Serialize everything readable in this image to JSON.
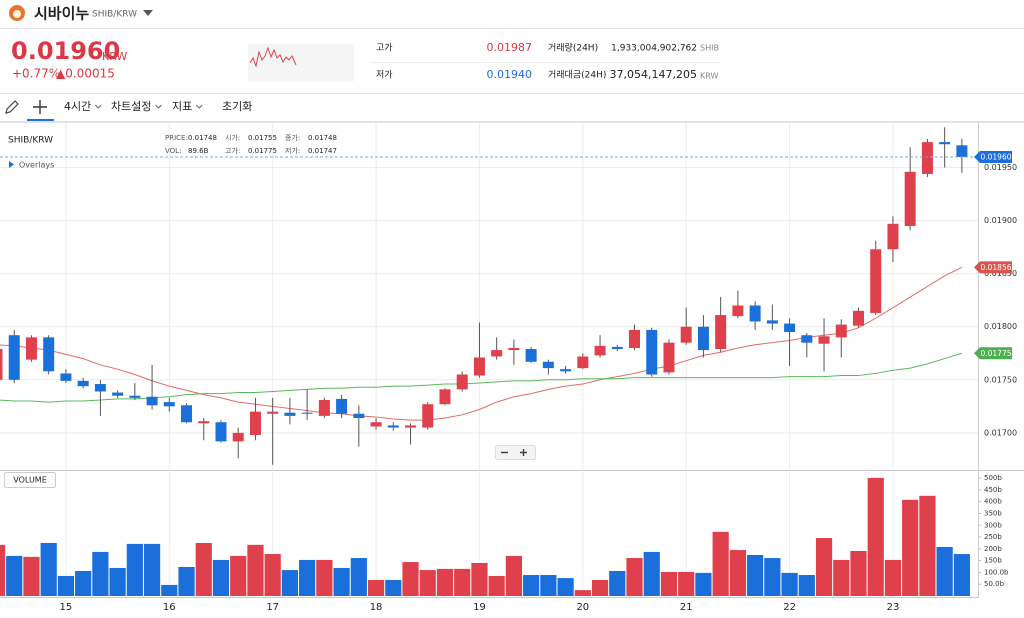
{
  "header": {
    "name": "시바이누",
    "pair": "SHIB/KRW"
  },
  "ticker": {
    "price": "0.01960",
    "unit": "KRW",
    "change_rate": "+0.77%",
    "change": "▲0.00015"
  },
  "stats": {
    "high_label": "고가",
    "high": "0.01987",
    "low_label": "저가",
    "low": "0.01940",
    "volume_label": "거래량(24H)",
    "volume": "1,933,004,902,762",
    "volume_unit": "SHIB",
    "amount_label": "거래대금(24H)",
    "amount": "37,054,147,205",
    "amount_unit": "KRW"
  },
  "toolbar": [
    "4시간",
    "차트설정",
    "지표",
    "초기화"
  ],
  "overlay": "Overlays",
  "legend_info": [
    {
      "label": "PRICE:",
      "value": "0.01748"
    },
    {
      "label": "시가:",
      "value": "0.01755"
    },
    {
      "label": "종가:",
      "value": "0.01748"
    },
    {
      "label": "VOL:",
      "value": "89.6B"
    },
    {
      "label": "고가:",
      "value": "0.01775"
    },
    {
      "label": "저가:",
      "value": "0.01747"
    }
  ],
  "chart_data": [
    {
      "type": "candlestick",
      "title": "SHIB/KRW",
      "categories": [
        null,
        null,
        null,
        null,
        "15",
        null,
        null,
        null,
        null,
        null,
        "16",
        null,
        null,
        null,
        null,
        null,
        "17",
        null,
        null,
        null,
        null,
        null,
        "18",
        null,
        null,
        null,
        null,
        null,
        "19",
        null,
        null,
        null,
        null,
        null,
        "20",
        null,
        null,
        null,
        null,
        null,
        "21",
        null,
        null,
        null,
        null,
        null,
        "22",
        null,
        null,
        null,
        null,
        null,
        "23",
        null,
        null,
        null,
        null
      ],
      "open": [
        0.0175,
        0.01792,
        0.01769,
        0.0179,
        0.01756,
        0.01749,
        0.01746,
        0.01738,
        0.01735,
        0.01734,
        0.01729,
        0.01726,
        0.01709,
        0.0171,
        0.01692,
        0.01698,
        0.01718,
        0.01719,
        0.01719,
        0.01716,
        0.01732,
        0.01718,
        0.01706,
        0.01707,
        0.01705,
        0.01705,
        0.01727,
        0.01741,
        0.01754,
        0.01772,
        0.01778,
        0.01779,
        0.01767,
        0.0176,
        0.01761,
        0.01773,
        0.01781,
        0.0178,
        0.01797,
        0.01757,
        0.01785,
        0.018,
        0.01779,
        0.0181,
        0.0182,
        0.01806,
        0.01803,
        0.01792,
        0.01784,
        0.0179,
        0.01801,
        0.01813,
        0.01873,
        0.01895,
        0.01944,
        0.01974,
        0.01971
      ],
      "high": [
        0.01781,
        0.01797,
        0.01792,
        0.01792,
        0.0176,
        0.01752,
        0.0175,
        0.0174,
        0.01747,
        0.01764,
        0.01733,
        0.01728,
        0.01714,
        0.01712,
        0.01705,
        0.01733,
        0.01733,
        0.01733,
        0.01741,
        0.01733,
        0.01736,
        0.01726,
        0.01714,
        0.0171,
        0.01709,
        0.01729,
        0.01742,
        0.01758,
        0.01804,
        0.0179,
        0.01788,
        0.01781,
        0.01769,
        0.01763,
        0.01775,
        0.01792,
        0.01783,
        0.01802,
        0.01799,
        0.01788,
        0.01818,
        0.01811,
        0.01828,
        0.01834,
        0.01824,
        0.01821,
        0.01808,
        0.01794,
        0.01808,
        0.01807,
        0.01818,
        0.01881,
        0.01904,
        0.01969,
        0.01977,
        0.01988,
        0.01977
      ],
      "low": [
        0.01747,
        0.01747,
        0.01767,
        0.01755,
        0.01747,
        0.01742,
        0.01716,
        0.01733,
        0.01731,
        0.01722,
        0.0172,
        0.01709,
        0.01693,
        0.01691,
        0.01676,
        0.01693,
        0.0167,
        0.01708,
        0.01712,
        0.01714,
        0.01714,
        0.01687,
        0.01703,
        0.01702,
        0.01689,
        0.01703,
        0.01726,
        0.01739,
        0.01752,
        0.01769,
        0.01764,
        0.01766,
        0.01755,
        0.01756,
        0.0176,
        0.01771,
        0.01777,
        0.01778,
        0.01753,
        0.01755,
        0.01783,
        0.01771,
        0.01776,
        0.01808,
        0.01797,
        0.01797,
        0.01763,
        0.01771,
        0.01758,
        0.01771,
        0.01799,
        0.01811,
        0.01861,
        0.01891,
        0.01941,
        0.0195,
        0.01945
      ],
      "close": [
        0.01779,
        0.0175,
        0.0179,
        0.01758,
        0.01749,
        0.01744,
        0.01739,
        0.01735,
        0.01733,
        0.01726,
        0.01725,
        0.0171,
        0.01711,
        0.01692,
        0.017,
        0.0172,
        0.0172,
        0.01716,
        0.01718,
        0.01731,
        0.01718,
        0.01714,
        0.0171,
        0.01705,
        0.01707,
        0.01727,
        0.01741,
        0.01755,
        0.01771,
        0.01778,
        0.0178,
        0.01767,
        0.01761,
        0.01758,
        0.01772,
        0.01782,
        0.01779,
        0.01797,
        0.01755,
        0.01785,
        0.018,
        0.01778,
        0.01811,
        0.0182,
        0.01805,
        0.01803,
        0.01795,
        0.01785,
        0.01791,
        0.01802,
        0.01815,
        0.01873,
        0.01897,
        0.01946,
        0.01974,
        0.01972,
        0.0196
      ],
      "up_color": "#e0404b",
      "down_color": "#1a6fdb",
      "wick_color": "#555555",
      "series": [
        {
          "color": "#e06a6a",
          "values": [
            0.01783,
            0.01782,
            0.0178,
            0.01778,
            0.01774,
            0.0177,
            0.01764,
            0.0176,
            0.01755,
            0.01749,
            0.01744,
            0.0174,
            0.01736,
            0.01733,
            0.01729,
            0.01727,
            0.01725,
            0.01723,
            0.01721,
            0.01719,
            0.01718,
            0.01716,
            0.01715,
            0.01713,
            0.01712,
            0.01712,
            0.01714,
            0.01717,
            0.01722,
            0.01729,
            0.01734,
            0.01737,
            0.01741,
            0.01744,
            0.01746,
            0.0175,
            0.01753,
            0.01756,
            0.0176,
            0.01763,
            0.01768,
            0.01773,
            0.01776,
            0.0178,
            0.01783,
            0.01785,
            0.01787,
            0.0179,
            0.01792,
            0.01794,
            0.01799,
            0.01808,
            0.01818,
            0.01828,
            0.01838,
            0.01848,
            0.01856
          ]
        },
        {
          "color": "#5cb85c",
          "values": [
            0.01731,
            0.0173,
            0.0173,
            0.01729,
            0.0173,
            0.0173,
            0.01731,
            0.01732,
            0.01732,
            0.01733,
            0.01734,
            0.01736,
            0.01737,
            0.01737,
            0.01738,
            0.01738,
            0.01739,
            0.0174,
            0.01741,
            0.01742,
            0.01742,
            0.01743,
            0.01743,
            0.01744,
            0.01744,
            0.01745,
            0.01746,
            0.01746,
            0.01747,
            0.01748,
            0.01749,
            0.01749,
            0.0175,
            0.0175,
            0.01751,
            0.01751,
            0.01751,
            0.01752,
            0.01752,
            0.01752,
            0.01752,
            0.01752,
            0.01752,
            0.01752,
            0.01752,
            0.01752,
            0.01753,
            0.01753,
            0.01753,
            0.01754,
            0.01754,
            0.01756,
            0.01759,
            0.01761,
            0.01765,
            0.0177,
            0.01775
          ]
        }
      ],
      "markers": [
        {
          "value": 0.0196,
          "label": "0.01960",
          "color": "#1a6fdb",
          "line": "dashed"
        },
        {
          "value": 0.01856,
          "label": "0.01856",
          "color": "#d9534f"
        },
        {
          "value": 0.01775,
          "label": "0.01775",
          "color": "#4cae4c"
        }
      ],
      "ylim": [
        0.01665,
        0.01992
      ],
      "yticks": [
        {
          "value": 0.017,
          "label": "0.01700"
        },
        {
          "value": 0.0175,
          "label": "0.01750"
        },
        {
          "value": 0.018,
          "label": "0.01800"
        },
        {
          "value": 0.0185,
          "label": "0.01850"
        },
        {
          "value": 0.019,
          "label": "0.01900"
        },
        {
          "value": 0.0195,
          "label": "0.01950"
        }
      ],
      "grid": true
    },
    {
      "type": "bar",
      "title": "VOLUME",
      "values": [
        217,
        170,
        166,
        225,
        85,
        106,
        187,
        119,
        221,
        221,
        47,
        123,
        225,
        153,
        170,
        217,
        178,
        110,
        153,
        153,
        119,
        161,
        68,
        68,
        144,
        110,
        115,
        115,
        140,
        85,
        170,
        89,
        89,
        76,
        25,
        68,
        106,
        161,
        187,
        102,
        102,
        98,
        272,
        195,
        174,
        161,
        98,
        89,
        246,
        153,
        191,
        501,
        153,
        408,
        425,
        208,
        178
      ],
      "ylim": [
        0,
        526
      ],
      "yticks": [
        {
          "value": 50,
          "label": "50.0b"
        },
        {
          "value": 100,
          "label": "100.0b"
        },
        {
          "value": 150,
          "label": "150b"
        },
        {
          "value": 200,
          "label": "200b"
        },
        {
          "value": 250,
          "label": "250b"
        },
        {
          "value": 300,
          "label": "300b"
        },
        {
          "value": 350,
          "label": "350b"
        },
        {
          "value": 400,
          "label": "400b"
        },
        {
          "value": 450,
          "label": "450b"
        },
        {
          "value": 500,
          "label": "500b"
        }
      ]
    }
  ]
}
